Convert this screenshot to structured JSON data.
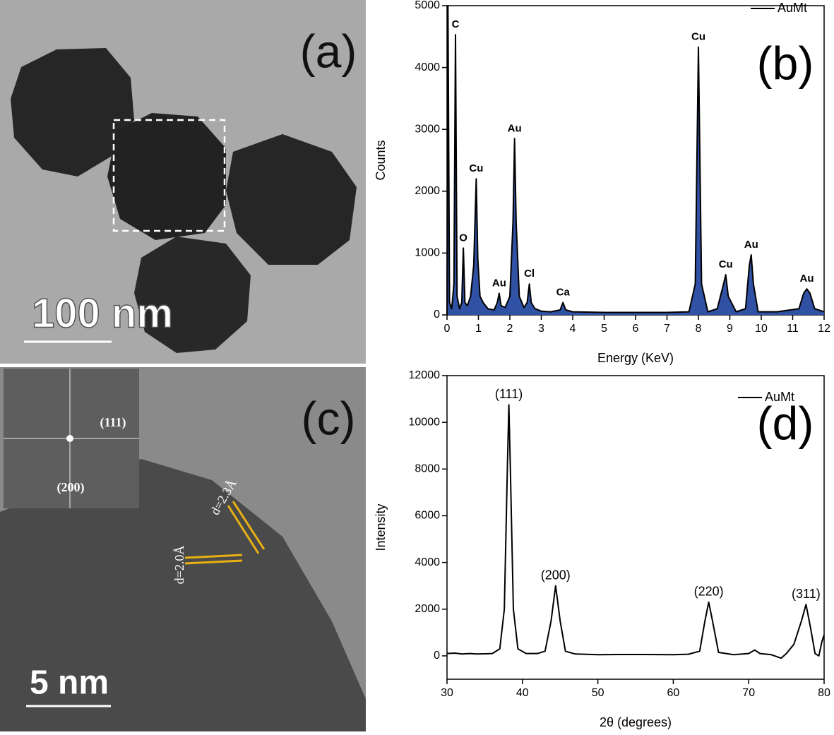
{
  "panels": [
    {
      "label": "(a)",
      "scale_bar": "100 nm"
    },
    {
      "label": "(c)",
      "scale_bar": "5 nm",
      "inset_labels": [
        "(111)",
        "(200)"
      ],
      "fringe_labels": [
        "d=2.3Å",
        "d=2.0Å"
      ]
    }
  ],
  "chart_data": [
    {
      "type": "area",
      "panel_label": "(b)",
      "x_label": "Energy (KeV)",
      "y_label": "Counts",
      "x": [
        0.0,
        0.03,
        0.08,
        0.15,
        0.22,
        0.27,
        0.32,
        0.4,
        0.47,
        0.52,
        0.57,
        0.65,
        0.75,
        0.85,
        0.93,
        0.98,
        1.05,
        1.15,
        1.3,
        1.5,
        1.6,
        1.66,
        1.72,
        1.85,
        2.0,
        2.1,
        2.15,
        2.2,
        2.3,
        2.45,
        2.55,
        2.62,
        2.68,
        2.8,
        3.0,
        3.3,
        3.6,
        3.69,
        3.78,
        4.0,
        5.0,
        6.0,
        7.0,
        7.7,
        7.9,
        8.0,
        8.1,
        8.3,
        8.6,
        8.8,
        8.87,
        8.95,
        9.2,
        9.5,
        9.62,
        9.68,
        9.75,
        9.9,
        10.5,
        11.2,
        11.35,
        11.45,
        11.55,
        11.7,
        12.0
      ],
      "series": [
        {
          "name": "AuMt",
          "color": "#000000",
          "fill": "#3152a4",
          "values": [
            0,
            5000,
            200,
            100,
            500,
            4530,
            300,
            100,
            200,
            1080,
            200,
            150,
            300,
            800,
            2200,
            900,
            300,
            200,
            100,
            80,
            200,
            350,
            150,
            120,
            300,
            1500,
            2850,
            1500,
            300,
            120,
            200,
            500,
            200,
            100,
            60,
            50,
            80,
            200,
            80,
            50,
            40,
            40,
            40,
            50,
            500,
            4330,
            500,
            50,
            100,
            500,
            650,
            300,
            50,
            100,
            800,
            970,
            500,
            50,
            50,
            100,
            350,
            420,
            350,
            100,
            50
          ]
        }
      ],
      "annotations": [
        {
          "text": "C",
          "x": 0.27,
          "y": 4530
        },
        {
          "text": "O",
          "x": 0.52,
          "y": 1080
        },
        {
          "text": "Cu",
          "x": 0.93,
          "y": 2200
        },
        {
          "text": "Au",
          "x": 1.66,
          "y": 350
        },
        {
          "text": "Au",
          "x": 2.15,
          "y": 2850
        },
        {
          "text": "Cl",
          "x": 2.62,
          "y": 500
        },
        {
          "text": "Ca",
          "x": 3.69,
          "y": 200
        },
        {
          "text": "Cu",
          "x": 8.0,
          "y": 4330
        },
        {
          "text": "Cu",
          "x": 8.87,
          "y": 650
        },
        {
          "text": "Au",
          "x": 9.68,
          "y": 970
        },
        {
          "text": "Au",
          "x": 11.45,
          "y": 420
        }
      ],
      "xlim": [
        0,
        12
      ],
      "xticks": [
        0,
        1,
        2,
        3,
        4,
        5,
        6,
        7,
        8,
        9,
        10,
        11,
        12
      ],
      "ylim": [
        0,
        5000
      ],
      "yticks": [
        0,
        1000,
        2000,
        3000,
        4000,
        5000
      ],
      "legend": "upper right"
    },
    {
      "type": "line",
      "panel_label": "(d)",
      "x_label": "2θ (degrees)",
      "y_label": "Intensity",
      "x": [
        30,
        31,
        32,
        33,
        34,
        35,
        36,
        37,
        37.6,
        38.0,
        38.2,
        38.4,
        38.8,
        39.4,
        40.5,
        42,
        43,
        43.8,
        44.4,
        45,
        45.7,
        47,
        50,
        53,
        56,
        60,
        62,
        63.5,
        64.2,
        64.7,
        65.2,
        66,
        68,
        70,
        70.8,
        71.5,
        73,
        74.3,
        75,
        76,
        77,
        77.6,
        78.2,
        78.8,
        79.3,
        79.7,
        80
      ],
      "series": [
        {
          "name": "AuMt",
          "color": "#000000",
          "values": [
            100,
            120,
            80,
            100,
            80,
            90,
            100,
            300,
            2000,
            8000,
            10750,
            8000,
            2000,
            300,
            100,
            100,
            200,
            1500,
            3000,
            1500,
            200,
            80,
            50,
            60,
            60,
            50,
            70,
            200,
            1500,
            2300,
            1500,
            150,
            50,
            100,
            250,
            100,
            50,
            -100,
            100,
            500,
            1500,
            2200,
            1200,
            100,
            0,
            600,
            900
          ]
        }
      ],
      "annotations": [
        {
          "text": "(111)",
          "x": 38.2,
          "y": 10750
        },
        {
          "text": "(200)",
          "x": 44.4,
          "y": 3000
        },
        {
          "text": "(220)",
          "x": 64.7,
          "y": 2300
        },
        {
          "text": "(311)",
          "x": 77.6,
          "y": 2200
        }
      ],
      "xlim": [
        30,
        80
      ],
      "xticks": [
        30,
        40,
        50,
        60,
        70,
        80
      ],
      "ylim": [
        -1000,
        12000
      ],
      "yticks": [
        0,
        2000,
        4000,
        6000,
        8000,
        10000,
        12000
      ],
      "legend": "upper right"
    }
  ]
}
